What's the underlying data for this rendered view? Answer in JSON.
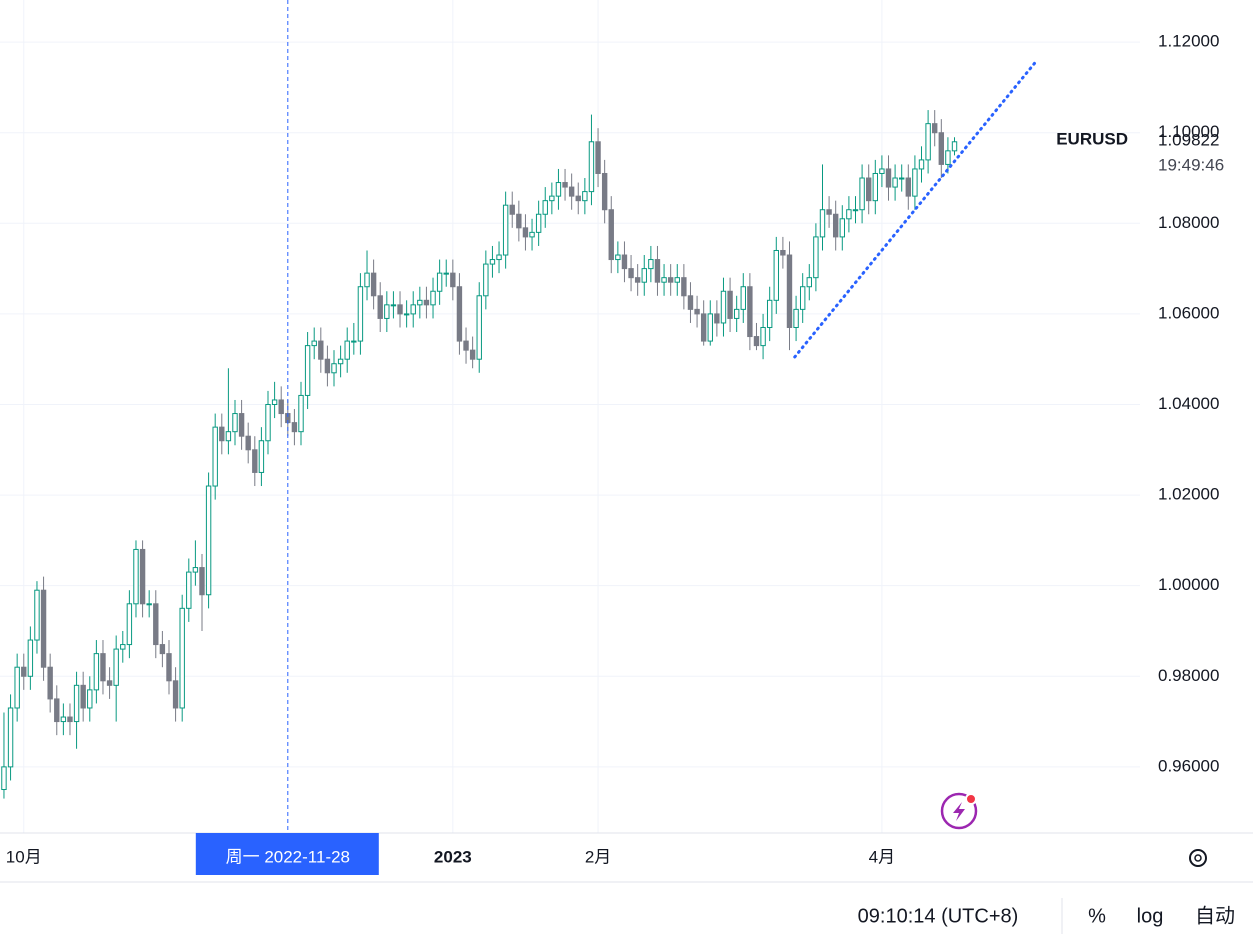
{
  "chart_data": {
    "type": "candlestick",
    "symbol": "EURUSD",
    "last_price": 1.09822,
    "countdown": "19:49:46",
    "up_color": "#089981",
    "down_color": "#787b86",
    "trend_color": "#2962ff",
    "grid": true,
    "ohlc": [
      [
        0.955,
        0.972,
        0.953,
        0.96
      ],
      [
        0.96,
        0.976,
        0.957,
        0.973
      ],
      [
        0.973,
        0.985,
        0.97,
        0.982
      ],
      [
        0.982,
        0.985,
        0.977,
        0.98
      ],
      [
        0.98,
        0.991,
        0.977,
        0.988
      ],
      [
        0.988,
        1.001,
        0.985,
        0.999
      ],
      [
        0.999,
        1.002,
        0.979,
        0.982
      ],
      [
        0.982,
        0.985,
        0.972,
        0.975
      ],
      [
        0.975,
        0.978,
        0.967,
        0.97
      ],
      [
        0.97,
        0.974,
        0.967,
        0.971
      ],
      [
        0.971,
        0.974,
        0.967,
        0.97
      ],
      [
        0.97,
        0.981,
        0.964,
        0.978
      ],
      [
        0.978,
        0.981,
        0.97,
        0.973
      ],
      [
        0.973,
        0.98,
        0.97,
        0.977
      ],
      [
        0.977,
        0.988,
        0.974,
        0.985
      ],
      [
        0.985,
        0.988,
        0.976,
        0.979
      ],
      [
        0.979,
        0.982,
        0.975,
        0.978
      ],
      [
        0.978,
        0.989,
        0.97,
        0.986
      ],
      [
        0.986,
        0.99,
        0.983,
        0.987
      ],
      [
        0.987,
        0.999,
        0.984,
        0.996
      ],
      [
        0.996,
        1.01,
        0.993,
        1.008
      ],
      [
        1.008,
        1.01,
        0.993,
        0.996
      ],
      [
        0.996,
        0.999,
        0.993,
        0.996
      ],
      [
        0.996,
        0.999,
        0.984,
        0.987
      ],
      [
        0.987,
        0.99,
        0.982,
        0.985
      ],
      [
        0.985,
        0.988,
        0.976,
        0.979
      ],
      [
        0.979,
        0.982,
        0.97,
        0.973
      ],
      [
        0.973,
        0.998,
        0.97,
        0.995
      ],
      [
        0.995,
        1.006,
        0.992,
        1.003
      ],
      [
        1.003,
        1.01,
        1.0,
        1.004
      ],
      [
        1.004,
        1.007,
        0.99,
        0.998
      ],
      [
        0.998,
        1.025,
        0.995,
        1.022
      ],
      [
        1.022,
        1.038,
        1.019,
        1.035
      ],
      [
        1.035,
        1.038,
        1.029,
        1.032
      ],
      [
        1.032,
        1.048,
        1.029,
        1.034
      ],
      [
        1.034,
        1.041,
        1.031,
        1.038
      ],
      [
        1.038,
        1.041,
        1.03,
        1.033
      ],
      [
        1.033,
        1.036,
        1.027,
        1.03
      ],
      [
        1.03,
        1.033,
        1.022,
        1.025
      ],
      [
        1.025,
        1.035,
        1.022,
        1.032
      ],
      [
        1.032,
        1.043,
        1.029,
        1.04
      ],
      [
        1.04,
        1.045,
        1.037,
        1.041
      ],
      [
        1.041,
        1.044,
        1.035,
        1.038
      ],
      [
        1.038,
        1.041,
        1.033,
        1.036
      ],
      [
        1.036,
        1.039,
        1.031,
        1.034
      ],
      [
        1.034,
        1.045,
        1.031,
        1.042
      ],
      [
        1.042,
        1.056,
        1.039,
        1.053
      ],
      [
        1.053,
        1.057,
        1.05,
        1.054
      ],
      [
        1.054,
        1.057,
        1.047,
        1.05
      ],
      [
        1.05,
        1.053,
        1.044,
        1.047
      ],
      [
        1.047,
        1.052,
        1.044,
        1.049
      ],
      [
        1.049,
        1.053,
        1.046,
        1.05
      ],
      [
        1.05,
        1.057,
        1.047,
        1.054
      ],
      [
        1.054,
        1.058,
        1.051,
        1.054
      ],
      [
        1.054,
        1.069,
        1.051,
        1.066
      ],
      [
        1.066,
        1.074,
        1.063,
        1.069
      ],
      [
        1.069,
        1.072,
        1.061,
        1.064
      ],
      [
        1.064,
        1.067,
        1.056,
        1.059
      ],
      [
        1.059,
        1.065,
        1.056,
        1.062
      ],
      [
        1.062,
        1.065,
        1.059,
        1.062
      ],
      [
        1.062,
        1.065,
        1.057,
        1.06
      ],
      [
        1.06,
        1.063,
        1.057,
        1.06
      ],
      [
        1.06,
        1.065,
        1.057,
        1.062
      ],
      [
        1.062,
        1.066,
        1.059,
        1.063
      ],
      [
        1.063,
        1.066,
        1.059,
        1.062
      ],
      [
        1.062,
        1.068,
        1.059,
        1.065
      ],
      [
        1.065,
        1.072,
        1.062,
        1.069
      ],
      [
        1.069,
        1.072,
        1.066,
        1.069
      ],
      [
        1.069,
        1.072,
        1.063,
        1.066
      ],
      [
        1.066,
        1.069,
        1.051,
        1.054
      ],
      [
        1.054,
        1.057,
        1.049,
        1.052
      ],
      [
        1.052,
        1.055,
        1.048,
        1.05
      ],
      [
        1.05,
        1.067,
        1.047,
        1.064
      ],
      [
        1.064,
        1.074,
        1.061,
        1.071
      ],
      [
        1.071,
        1.075,
        1.068,
        1.072
      ],
      [
        1.072,
        1.076,
        1.069,
        1.073
      ],
      [
        1.073,
        1.087,
        1.07,
        1.084
      ],
      [
        1.084,
        1.087,
        1.079,
        1.082
      ],
      [
        1.082,
        1.085,
        1.076,
        1.079
      ],
      [
        1.079,
        1.082,
        1.074,
        1.077
      ],
      [
        1.077,
        1.081,
        1.074,
        1.078
      ],
      [
        1.078,
        1.085,
        1.075,
        1.082
      ],
      [
        1.082,
        1.088,
        1.079,
        1.085
      ],
      [
        1.085,
        1.089,
        1.082,
        1.086
      ],
      [
        1.086,
        1.092,
        1.083,
        1.089
      ],
      [
        1.089,
        1.092,
        1.085,
        1.088
      ],
      [
        1.088,
        1.091,
        1.083,
        1.086
      ],
      [
        1.086,
        1.089,
        1.082,
        1.085
      ],
      [
        1.085,
        1.09,
        1.082,
        1.087
      ],
      [
        1.087,
        1.104,
        1.084,
        1.098
      ],
      [
        1.098,
        1.101,
        1.088,
        1.091
      ],
      [
        1.091,
        1.094,
        1.08,
        1.083
      ],
      [
        1.083,
        1.086,
        1.069,
        1.072
      ],
      [
        1.072,
        1.076,
        1.069,
        1.073
      ],
      [
        1.073,
        1.076,
        1.067,
        1.07
      ],
      [
        1.07,
        1.073,
        1.065,
        1.068
      ],
      [
        1.068,
        1.071,
        1.064,
        1.067
      ],
      [
        1.067,
        1.073,
        1.064,
        1.07
      ],
      [
        1.07,
        1.075,
        1.067,
        1.072
      ],
      [
        1.072,
        1.075,
        1.064,
        1.067
      ],
      [
        1.067,
        1.071,
        1.064,
        1.068
      ],
      [
        1.068,
        1.071,
        1.064,
        1.067
      ],
      [
        1.067,
        1.071,
        1.064,
        1.068
      ],
      [
        1.068,
        1.071,
        1.061,
        1.064
      ],
      [
        1.064,
        1.067,
        1.058,
        1.061
      ],
      [
        1.061,
        1.064,
        1.057,
        1.06
      ],
      [
        1.06,
        1.063,
        1.053,
        1.054
      ],
      [
        1.054,
        1.063,
        1.053,
        1.06
      ],
      [
        1.06,
        1.063,
        1.055,
        1.058
      ],
      [
        1.058,
        1.068,
        1.055,
        1.065
      ],
      [
        1.065,
        1.068,
        1.056,
        1.059
      ],
      [
        1.059,
        1.064,
        1.056,
        1.061
      ],
      [
        1.061,
        1.069,
        1.058,
        1.066
      ],
      [
        1.066,
        1.069,
        1.052,
        1.055
      ],
      [
        1.055,
        1.058,
        1.052,
        1.053
      ],
      [
        1.053,
        1.06,
        1.05,
        1.057
      ],
      [
        1.057,
        1.066,
        1.054,
        1.063
      ],
      [
        1.063,
        1.077,
        1.06,
        1.074
      ],
      [
        1.074,
        1.077,
        1.07,
        1.073
      ],
      [
        1.073,
        1.076,
        1.052,
        1.057
      ],
      [
        1.057,
        1.064,
        1.054,
        1.061
      ],
      [
        1.061,
        1.069,
        1.058,
        1.066
      ],
      [
        1.066,
        1.071,
        1.063,
        1.068
      ],
      [
        1.068,
        1.08,
        1.065,
        1.077
      ],
      [
        1.077,
        1.093,
        1.074,
        1.083
      ],
      [
        1.083,
        1.086,
        1.079,
        1.082
      ],
      [
        1.082,
        1.085,
        1.074,
        1.077
      ],
      [
        1.077,
        1.084,
        1.074,
        1.081
      ],
      [
        1.081,
        1.086,
        1.078,
        1.083
      ],
      [
        1.083,
        1.086,
        1.08,
        1.083
      ],
      [
        1.083,
        1.093,
        1.08,
        1.09
      ],
      [
        1.09,
        1.093,
        1.082,
        1.085
      ],
      [
        1.085,
        1.094,
        1.082,
        1.091
      ],
      [
        1.091,
        1.095,
        1.088,
        1.092
      ],
      [
        1.092,
        1.095,
        1.085,
        1.088
      ],
      [
        1.088,
        1.093,
        1.085,
        1.09
      ],
      [
        1.09,
        1.093,
        1.087,
        1.09
      ],
      [
        1.09,
        1.093,
        1.083,
        1.086
      ],
      [
        1.086,
        1.095,
        1.083,
        1.092
      ],
      [
        1.092,
        1.097,
        1.089,
        1.094
      ],
      [
        1.094,
        1.105,
        1.091,
        1.102
      ],
      [
        1.102,
        1.105,
        1.097,
        1.1
      ],
      [
        1.1,
        1.103,
        1.09,
        1.093
      ],
      [
        1.093,
        1.099,
        1.091,
        1.096
      ],
      [
        1.096,
        1.099,
        1.095,
        1.098
      ]
    ],
    "xlim": [
      -0.6,
      172.1
    ],
    "xticks": [
      {
        "value": 3,
        "label": "10月"
      },
      {
        "value": 68,
        "label": "2023"
      },
      {
        "value": 90,
        "label": "2月"
      },
      {
        "value": 133,
        "label": "4月"
      }
    ],
    "ylim": [
      0.9454,
      1.1293
    ],
    "yticks": [
      {
        "value": 0.96,
        "label": "0.96000"
      },
      {
        "value": 0.98,
        "label": "0.98000"
      },
      {
        "value": 1.0,
        "label": "1.00000"
      },
      {
        "value": 1.02,
        "label": "1.02000"
      },
      {
        "value": 1.04,
        "label": "1.04000"
      },
      {
        "value": 1.06,
        "label": "1.06000"
      },
      {
        "value": 1.08,
        "label": "1.08000"
      },
      {
        "value": 1.1,
        "label": "1.10000"
      },
      {
        "value": 1.12,
        "label": "1.12000"
      }
    ],
    "trendline": {
      "x": [
        119.8,
        156.5
      ],
      "y": [
        1.0505,
        1.116
      ]
    },
    "crosshair": {
      "x": 43,
      "label": "周一 2022-11-28"
    }
  },
  "status_bar": {
    "time": "09:10:14 (UTC+8)",
    "percent": "%",
    "log": "log",
    "auto": "自动"
  }
}
